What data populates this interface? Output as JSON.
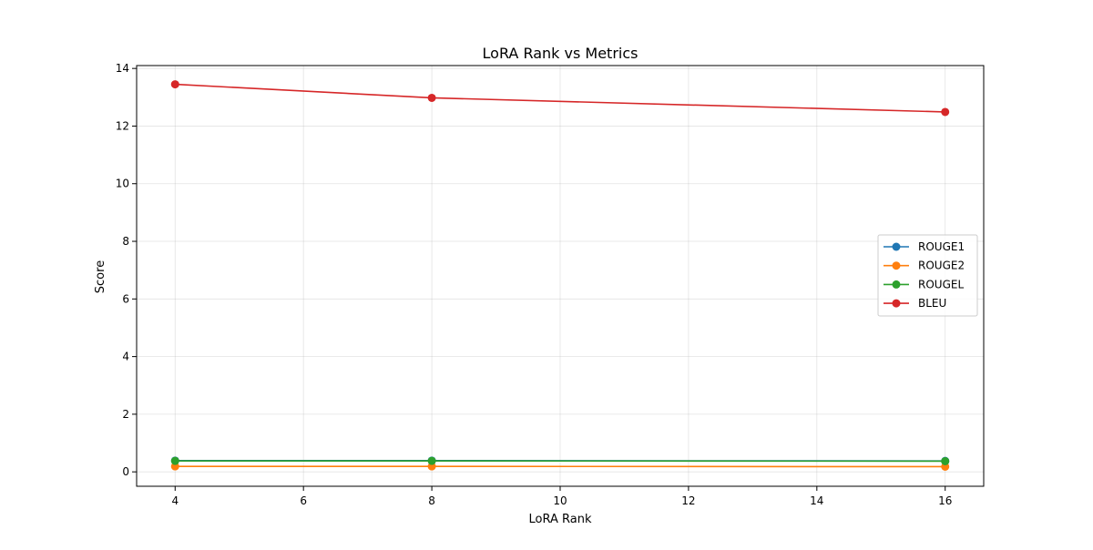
{
  "chart_data": {
    "type": "line",
    "title": "LoRA Rank vs Metrics",
    "xlabel": "LoRA Rank",
    "ylabel": "Score",
    "x": [
      4,
      8,
      16
    ],
    "xlim": [
      3.4,
      16.6
    ],
    "ylim": [
      -0.5,
      14.1
    ],
    "xticks": [
      4,
      6,
      8,
      10,
      12,
      14,
      16
    ],
    "yticks": [
      0,
      2,
      4,
      6,
      8,
      10,
      12,
      14
    ],
    "grid": true,
    "legend_position": "center-right",
    "series": [
      {
        "name": "ROUGE1",
        "color": "#1f77b4",
        "values": [
          0.39,
          0.39,
          0.38
        ]
      },
      {
        "name": "ROUGE2",
        "color": "#ff7f0e",
        "values": [
          0.19,
          0.19,
          0.18
        ]
      },
      {
        "name": "ROUGEL",
        "color": "#2ca02c",
        "values": [
          0.38,
          0.38,
          0.37
        ]
      },
      {
        "name": "BLEU",
        "color": "#d62728",
        "values": [
          13.45,
          12.98,
          12.49
        ]
      }
    ]
  }
}
